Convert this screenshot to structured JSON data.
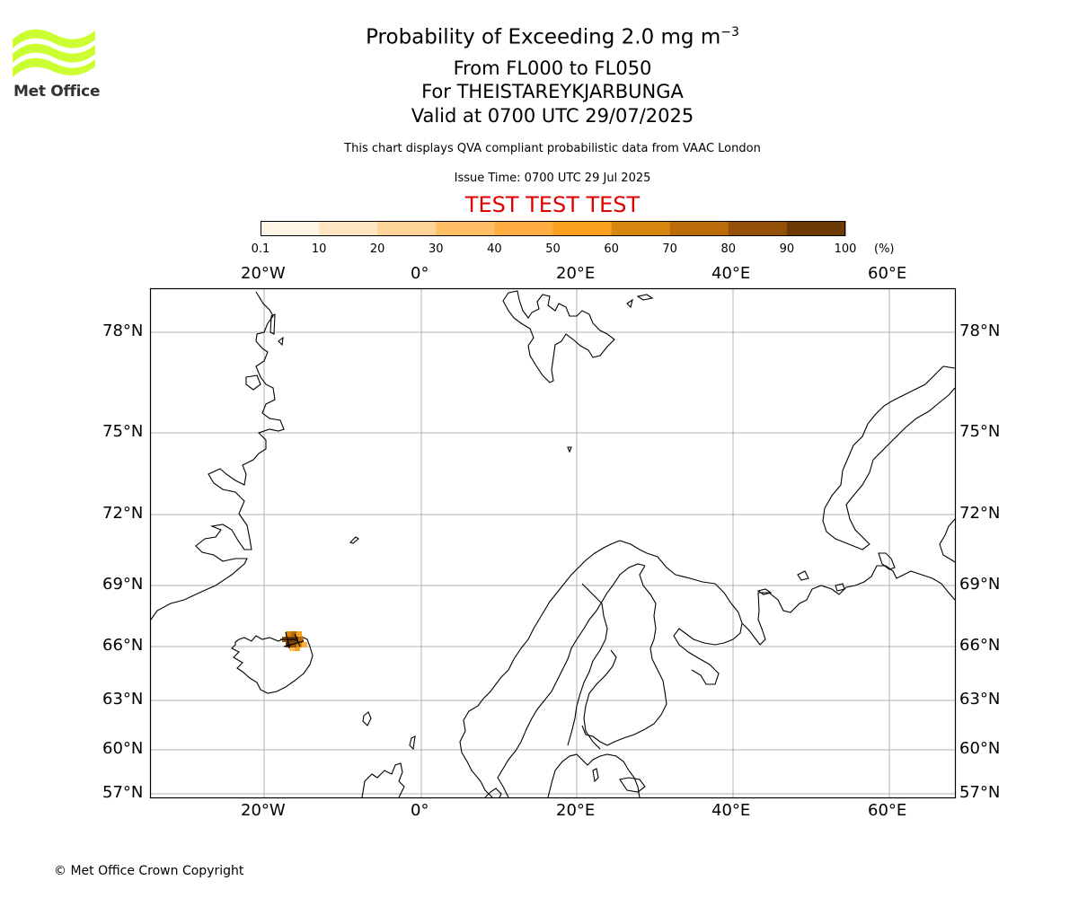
{
  "header": {
    "title": "Probability of Exceeding 2.0 mg m",
    "title_exponent": "−3",
    "flight_levels": "From FL000 to FL050",
    "volcano": "For THEISTAREYKJARBUNGA",
    "valid": "Valid at 0700 UTC 29/07/2025",
    "description": "This chart displays QVA compliant probabilistic data from VAAC London",
    "issue_time": "Issue Time: 0700 UTC 29 Jul 2025",
    "test_banner": "TEST TEST TEST"
  },
  "logo": {
    "text": "Met Office",
    "color": "#ccff33"
  },
  "colorbar": {
    "unit": "(%)",
    "ticks": [
      "0.1",
      "10",
      "20",
      "30",
      "40",
      "50",
      "60",
      "70",
      "80",
      "90",
      "100"
    ],
    "colors": [
      "#fff5e6",
      "#ffe5bf",
      "#ffd499",
      "#ffbf66",
      "#ffad40",
      "#f9a020",
      "#d98610",
      "#bb6c09",
      "#935008",
      "#6d3a05"
    ]
  },
  "map": {
    "lon_labels": [
      "20°W",
      "0°",
      "20°E",
      "40°E",
      "60°E"
    ],
    "lat_labels": [
      "78°N",
      "75°N",
      "72°N",
      "69°N",
      "66°N",
      "63°N",
      "60°N",
      "57°N"
    ],
    "ash_location": "Iceland (northeast)",
    "ash_probability_max": 100
  },
  "footer": {
    "copyright": "© Met Office Crown Copyright"
  }
}
